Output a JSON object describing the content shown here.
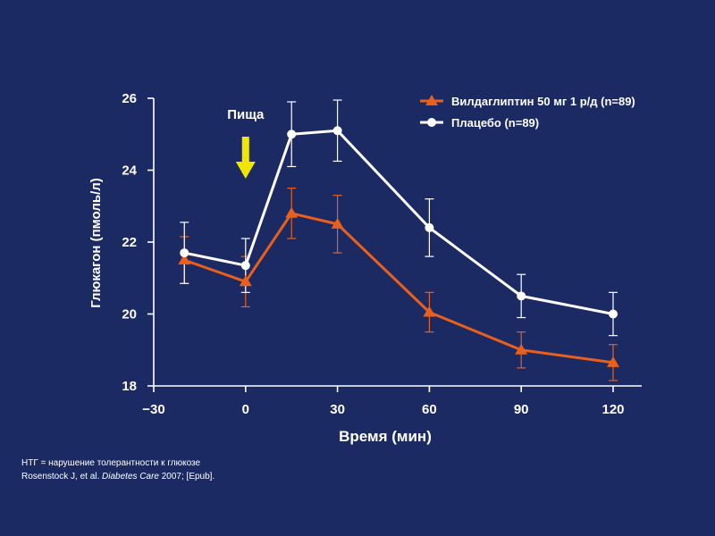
{
  "chart_data": {
    "type": "line",
    "xlabel": "Время (мин)",
    "ylabel": "Глюкагон (пмоль/л)",
    "xlim": [
      -30,
      120
    ],
    "ylim": [
      18,
      26
    ],
    "x_ticks": [
      -30,
      0,
      30,
      60,
      90,
      120
    ],
    "x_tick_labels": [
      "−30",
      "0",
      "30",
      "60",
      "90",
      "120"
    ],
    "y_ticks": [
      18,
      20,
      22,
      24,
      26
    ],
    "y_tick_labels": [
      "18",
      "20",
      "22",
      "24",
      "26"
    ],
    "annotation": {
      "text": "Пища",
      "x": 0
    },
    "legend_position": "top-right",
    "series": [
      {
        "name": "Вилдаглиптин 50 мг 1 р/д (n=89)",
        "color": "#e8601c",
        "marker": "triangle",
        "x": [
          -20,
          0,
          15,
          30,
          60,
          90,
          120
        ],
        "y": [
          21.5,
          20.9,
          22.8,
          22.5,
          20.05,
          19.0,
          18.65
        ],
        "err": [
          0.65,
          0.7,
          0.7,
          0.8,
          0.55,
          0.5,
          0.5
        ]
      },
      {
        "name": "Плацебо (n=89)",
        "color": "#ffffff",
        "marker": "circle",
        "x": [
          -20,
          0,
          15,
          30,
          60,
          90,
          120
        ],
        "y": [
          21.7,
          21.35,
          25.0,
          25.1,
          22.4,
          20.5,
          20.0
        ],
        "err": [
          0.85,
          0.75,
          0.9,
          0.85,
          0.8,
          0.6,
          0.6
        ]
      }
    ]
  },
  "colors": {
    "background": "#1c2a63",
    "axis": "#ffffff",
    "arrow": "#f2e500"
  },
  "footnote": {
    "line1": "НТГ = нарушение толерантности к глюкозе",
    "line2_prefix": "Rosenstock J, et al. ",
    "line2_journal": "Diabetes Care",
    "line2_suffix": " 2007; [Epub]."
  }
}
